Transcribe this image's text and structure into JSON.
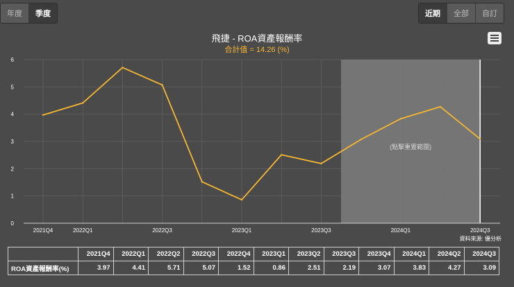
{
  "toggles": {
    "period": [
      {
        "label": "年度",
        "active": false
      },
      {
        "label": "季度",
        "active": true
      }
    ],
    "range": [
      {
        "label": "近期",
        "active": true
      },
      {
        "label": "全部",
        "active": false
      },
      {
        "label": "自訂",
        "active": false
      }
    ]
  },
  "source_note": "資料來源: 優分析",
  "table": {
    "row_label": "ROA資產報酬率(%)",
    "display_values": [
      "3.97",
      "4.41",
      "5.71",
      "5.07",
      "1.52",
      "0.86",
      "2.51",
      "2.19",
      "3.07",
      "3.83",
      "4.27",
      "3.09"
    ]
  },
  "colors": {
    "line": "#f5b731",
    "background": "#4a4a4a",
    "highlight": "#7a7a7a",
    "grid": "#5c5c5c"
  },
  "chart_data": {
    "type": "line",
    "title": "飛捷 - ROA資產報酬率",
    "subtitle": "合計值 = 14.26 (%)",
    "categories": [
      "2021Q4",
      "2022Q1",
      "2022Q2",
      "2022Q3",
      "2022Q4",
      "2023Q1",
      "2023Q2",
      "2023Q3",
      "2023Q4",
      "2024Q1",
      "2024Q2",
      "2024Q3"
    ],
    "x_tick_labels": [
      "2021Q4",
      "2022Q1",
      "",
      "2022Q3",
      "",
      "2023Q1",
      "",
      "2023Q3",
      "",
      "2024Q1",
      "",
      "2024Q3"
    ],
    "series": [
      {
        "values": [
          3.97,
          4.41,
          5.71,
          5.07,
          1.52,
          0.86,
          2.51,
          2.19,
          3.07,
          3.83,
          4.27,
          3.09
        ]
      }
    ],
    "ylim": [
      0,
      6
    ],
    "yticks": [
      0,
      1,
      2,
      3,
      4,
      5,
      6
    ],
    "highlight_range": [
      "2023Q4",
      "2024Q3"
    ],
    "highlight_label": "(點擊重置範圍)",
    "grid": true,
    "legend": "none"
  }
}
